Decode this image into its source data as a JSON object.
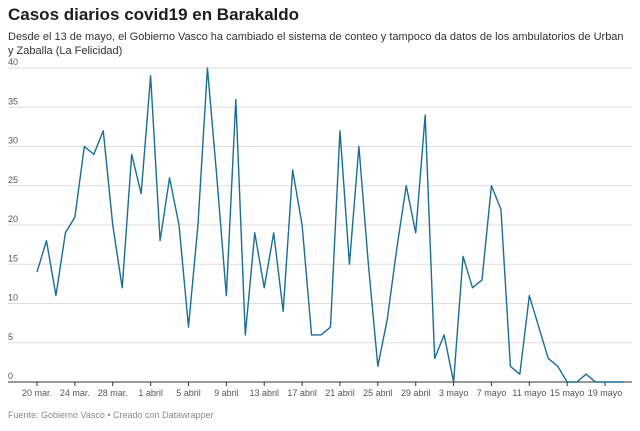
{
  "header": {
    "title": "Casos diarios covid19 en Barakaldo",
    "subtitle": "Desde el 13 de mayo, el Gobierno Vasco ha cambiado el sistema de conteo y tampoco da datos de los ambulatorios de Urban y Zaballa (La Felicidad)"
  },
  "footer": {
    "source": "Fuente: Gobierno Vasco • Creado con Datawrapper"
  },
  "colors": {
    "line": "#1a6e93",
    "grid": "#dddddd",
    "axis": "#333333"
  },
  "chart_data": {
    "type": "line",
    "title": "Casos diarios covid19 en Barakaldo",
    "x": [
      "20 mar.",
      "21 mar.",
      "22 mar.",
      "23 mar.",
      "24 mar.",
      "25 mar.",
      "26 mar.",
      "27 mar.",
      "28 mar.",
      "29 mar.",
      "30 mar.",
      "31 mar.",
      "1 abril",
      "2 abril",
      "3 abril",
      "4 abril",
      "5 abril",
      "6 abril",
      "7 abril",
      "8 abril",
      "9 abril",
      "10 abril",
      "11 abril",
      "12 abril",
      "13 abril",
      "14 abril",
      "15 abril",
      "16 abril",
      "17 abril",
      "18 abril",
      "19 abril",
      "20 abril",
      "21 abril",
      "22 abril",
      "23 abril",
      "24 abril",
      "25 abril",
      "26 abril",
      "27 abril",
      "28 abril",
      "29 abril",
      "30 abril",
      "1 mayo",
      "2 mayo",
      "3 mayo",
      "4 mayo",
      "5 mayo",
      "6 mayo",
      "7 mayo",
      "8 mayo",
      "9 mayo",
      "10 mayo",
      "11 mayo",
      "12 mayo",
      "13 mayo",
      "14 mayo",
      "15 mayo",
      "16 mayo",
      "17 mayo",
      "18 mayo",
      "19 mayo",
      "20 mayo",
      "21 mayo"
    ],
    "series": [
      {
        "values": [
          14,
          18,
          11,
          19,
          21,
          30,
          29,
          32,
          20,
          12,
          29,
          24,
          39,
          18,
          26,
          20,
          7,
          20,
          40,
          26,
          11,
          36,
          6,
          19,
          12,
          19,
          9,
          27,
          20,
          6,
          6,
          7,
          32,
          15,
          30,
          15,
          2,
          8,
          17,
          25,
          19,
          34,
          3,
          6,
          0,
          16,
          12,
          13,
          25,
          22,
          2,
          1,
          11,
          7,
          3,
          2,
          0,
          0,
          1,
          0,
          0,
          0,
          0
        ]
      }
    ],
    "x_ticks": [
      "20 mar.",
      "24 mar.",
      "28 mar.",
      "1 abril",
      "5 abril",
      "9 abril",
      "13 abril",
      "17 abril",
      "21 abril",
      "25 abril",
      "29 abril",
      "3 mayo",
      "7 mayo",
      "11 mayo",
      "15 mayo",
      "19 mayo"
    ],
    "y_ticks": [
      0,
      5,
      10,
      15,
      20,
      25,
      30,
      35,
      40
    ],
    "ylim": [
      0,
      40
    ],
    "grid": true,
    "legend": "none"
  }
}
